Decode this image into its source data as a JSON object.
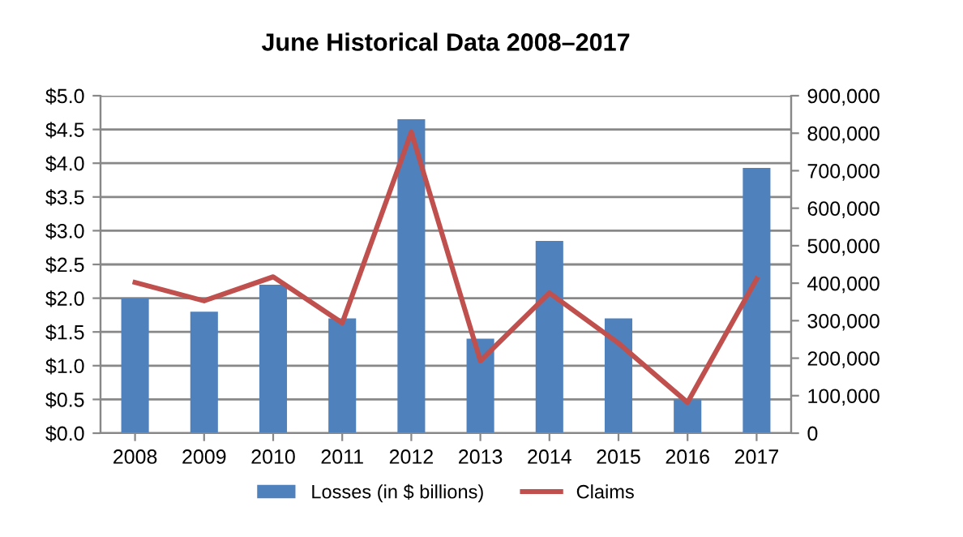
{
  "chart_data": {
    "type": "bar",
    "title": "June Historical Data 2008–2017",
    "categories": [
      "2008",
      "2009",
      "2010",
      "2011",
      "2012",
      "2013",
      "2014",
      "2015",
      "2016",
      "2017"
    ],
    "series": [
      {
        "name": "Losses (in $ billions)",
        "color": "#4f81bd",
        "values": [
          2.0,
          1.8,
          2.2,
          1.7,
          4.65,
          1.4,
          2.85,
          1.7,
          0.5,
          3.93
        ]
      },
      {
        "name": "Claims",
        "type": "line",
        "axis": "y2",
        "color": "#c0504d",
        "values": [
          402000,
          353000,
          417000,
          294000,
          803000,
          193000,
          374000,
          240000,
          82000,
          411000
        ]
      }
    ],
    "ylim": [
      0,
      5
    ],
    "yticks": [
      {
        "value": 0,
        "label": "$0.0"
      },
      {
        "value": 0.5,
        "label": "$0.5"
      },
      {
        "value": 1,
        "label": "$1.0"
      },
      {
        "value": 1.5,
        "label": "$1.5"
      },
      {
        "value": 2,
        "label": "$2.0"
      },
      {
        "value": 2.5,
        "label": "$2.5"
      },
      {
        "value": 3,
        "label": "$3.0"
      },
      {
        "value": 3.5,
        "label": "$3.5"
      },
      {
        "value": 4,
        "label": "$4.0"
      },
      {
        "value": 4.5,
        "label": "$4.5"
      },
      {
        "value": 5,
        "label": "$5.0"
      }
    ],
    "y2lim": [
      0,
      900000
    ],
    "y2ticks": [
      0,
      {
        "value": 100000,
        "label": "100,000"
      },
      {
        "value": 200000,
        "label": "200,000"
      },
      {
        "value": 300000,
        "label": "300,000"
      },
      {
        "value": 400000,
        "label": "400,000"
      },
      {
        "value": 500000,
        "label": "500,000"
      },
      {
        "value": 600000,
        "label": "600,000"
      },
      {
        "value": 700000,
        "label": "700,000"
      },
      {
        "value": 800000,
        "label": "800,000"
      },
      {
        "value": 900000,
        "label": "900,000"
      }
    ],
    "grid": "y",
    "legend": "bottom",
    "marker": "none",
    "line_style": "solid"
  }
}
